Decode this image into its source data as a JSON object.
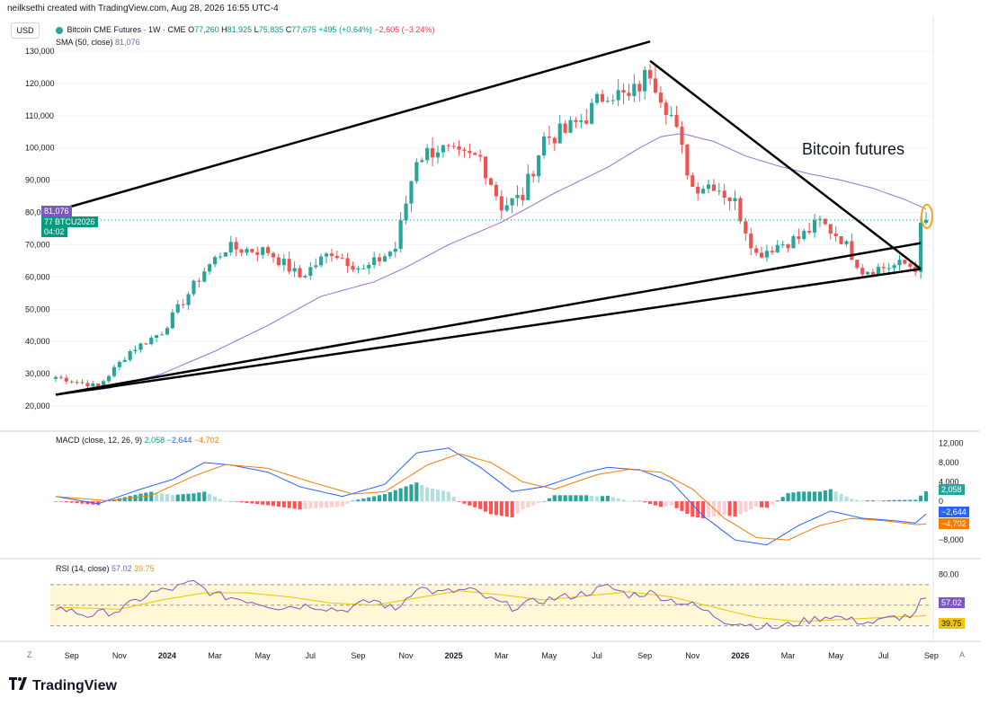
{
  "header": {
    "credit": "neilksethi created with TradingView.com, Aug 28, 2026 16:55 UTC-4",
    "currency": "USD"
  },
  "legend": {
    "symbol": "Bitcoin CME Futures · 1W · CME",
    "o_label": "O",
    "o_value": "77,260",
    "h_label": "H",
    "h_value": "81,925",
    "l_label": "L",
    "l_value": "75,835",
    "c_label": "C",
    "c_value": "77,675",
    "change": "+495 (+0.64%)",
    "change2": "−2,605 (−3.24%)",
    "sma_label": "SMA (50, close)",
    "sma_value": "81,076"
  },
  "annotation": "Bitcoin futures",
  "price_badges": {
    "sma": "81,076",
    "price": "77,675",
    "countdown": "04:02",
    "ticker": "BTCU2026"
  },
  "macd_legend": {
    "label": "MACD (close, 12, 26, 9)",
    "hist": "2,058",
    "macd": "−2,644",
    "signal": "−4,702"
  },
  "rsi_legend": {
    "label": "RSI (14, close)",
    "rsi": "57.02",
    "sma": "39.75"
  },
  "footer": {
    "brand": "TradingView",
    "z": "Z",
    "a": "A"
  },
  "colors": {
    "up": "#26a69a",
    "down": "#ef5350",
    "sma": "#9c6fd6",
    "macd": "#2962ff",
    "signal": "#f57c00",
    "rsi": "#7e57c2",
    "rsi_sma": "#f0c400",
    "trendline": "#000000"
  },
  "chart_data": [
    {
      "type": "candlestick",
      "title": "Bitcoin CME Futures · 1W · CME",
      "ylim": [
        20000,
        130000
      ],
      "yticks": [
        "130,000",
        "120,000",
        "110,000",
        "100,000",
        "90,000",
        "80,000",
        "70,000",
        "60,000",
        "50,000",
        "40,000",
        "30,000",
        "20,000"
      ],
      "ytick_values": [
        130000,
        120000,
        110000,
        100000,
        90000,
        80000,
        70000,
        60000,
        50000,
        40000,
        30000,
        20000
      ],
      "xlabels": [
        "Sep",
        "Nov",
        "2024",
        "Mar",
        "May",
        "Jul",
        "Sep",
        "Nov",
        "2025",
        "Mar",
        "May",
        "Jul",
        "Sep",
        "Nov",
        "2026",
        "Mar",
        "May",
        "Jul",
        "Sep"
      ],
      "xlabel_week": [
        3,
        12,
        21,
        30,
        39,
        48,
        57,
        66,
        75,
        84,
        93,
        102,
        111,
        120,
        129,
        138,
        147,
        156,
        165
      ],
      "bold_labels": [
        "2024",
        "2025",
        "2026"
      ],
      "last_close": 77675,
      "sma_last": 81076,
      "anchors_close": [
        [
          0,
          29000
        ],
        [
          8,
          26000
        ],
        [
          14,
          37000
        ],
        [
          20,
          43000
        ],
        [
          28,
          62000
        ],
        [
          32,
          69000
        ],
        [
          40,
          68000
        ],
        [
          46,
          60000
        ],
        [
          52,
          68000
        ],
        [
          58,
          62000
        ],
        [
          64,
          69000
        ],
        [
          68,
          97000
        ],
        [
          72,
          100000
        ],
        [
          76,
          97000
        ],
        [
          80,
          97000
        ],
        [
          84,
          82000
        ],
        [
          88,
          85000
        ],
        [
          92,
          103000
        ],
        [
          96,
          105000
        ],
        [
          100,
          110000
        ],
        [
          104,
          118000
        ],
        [
          108,
          115000
        ],
        [
          112,
          124000
        ],
        [
          116,
          110000
        ],
        [
          120,
          88000
        ],
        [
          124,
          89000
        ],
        [
          128,
          83000
        ],
        [
          132,
          67000
        ],
        [
          136,
          70000
        ],
        [
          140,
          72000
        ],
        [
          144,
          77000
        ],
        [
          148,
          72000
        ],
        [
          152,
          62000
        ],
        [
          156,
          63000
        ],
        [
          160,
          64000
        ],
        [
          162,
          63000
        ],
        [
          163,
          75000
        ],
        [
          164,
          77675
        ]
      ],
      "sma_points": [
        [
          0,
          23500
        ],
        [
          10,
          25500
        ],
        [
          20,
          30000
        ],
        [
          30,
          37000
        ],
        [
          40,
          45000
        ],
        [
          50,
          54000
        ],
        [
          60,
          58500
        ],
        [
          66,
          63000
        ],
        [
          74,
          70000
        ],
        [
          84,
          77000
        ],
        [
          94,
          86000
        ],
        [
          104,
          94000
        ],
        [
          110,
          100000
        ],
        [
          114,
          103500
        ],
        [
          118,
          104500
        ],
        [
          124,
          102000
        ],
        [
          130,
          97500
        ],
        [
          136,
          94500
        ],
        [
          142,
          92000
        ],
        [
          148,
          90000
        ],
        [
          154,
          87500
        ],
        [
          160,
          84000
        ],
        [
          164,
          81076
        ]
      ],
      "trendlines": [
        {
          "from": [
            0,
            80500
          ],
          "to": [
            112,
            133000
          ]
        },
        {
          "from": [
            0,
            23500
          ],
          "to": [
            163,
            70500
          ]
        },
        {
          "from": [
            0,
            23500
          ],
          "to": [
            163,
            62500
          ]
        },
        {
          "from": [
            112,
            127000
          ],
          "to": [
            163,
            62500
          ]
        }
      ]
    },
    {
      "type": "macd",
      "title": "MACD (close, 12, 26, 9)",
      "yticks": [
        "12,000",
        "8,000",
        "4,000",
        "0",
        "−8,000"
      ],
      "ytick_values": [
        12000,
        8000,
        4000,
        0,
        -8000
      ],
      "ylim": [
        -10000,
        13000
      ],
      "macd_anchors": [
        [
          0,
          1000
        ],
        [
          8,
          -500
        ],
        [
          16,
          2500
        ],
        [
          22,
          4500
        ],
        [
          28,
          8000
        ],
        [
          33,
          7500
        ],
        [
          40,
          6000
        ],
        [
          46,
          3000
        ],
        [
          54,
          1000
        ],
        [
          62,
          3500
        ],
        [
          68,
          10000
        ],
        [
          74,
          11000
        ],
        [
          80,
          7000
        ],
        [
          86,
          2000
        ],
        [
          92,
          3000
        ],
        [
          100,
          6000
        ],
        [
          104,
          7000
        ],
        [
          110,
          6500
        ],
        [
          116,
          4000
        ],
        [
          122,
          -3000
        ],
        [
          128,
          -8000
        ],
        [
          134,
          -9000
        ],
        [
          140,
          -5000
        ],
        [
          146,
          -2000
        ],
        [
          152,
          -3500
        ],
        [
          158,
          -4000
        ],
        [
          162,
          -4500
        ],
        [
          164,
          -2644
        ]
      ],
      "signal_anchors": [
        [
          0,
          1000
        ],
        [
          10,
          100
        ],
        [
          18,
          1200
        ],
        [
          26,
          5200
        ],
        [
          32,
          7600
        ],
        [
          40,
          6800
        ],
        [
          48,
          4000
        ],
        [
          56,
          1500
        ],
        [
          62,
          2000
        ],
        [
          70,
          7500
        ],
        [
          76,
          9800
        ],
        [
          82,
          8000
        ],
        [
          88,
          4000
        ],
        [
          94,
          2500
        ],
        [
          102,
          5500
        ],
        [
          108,
          6600
        ],
        [
          114,
          6000
        ],
        [
          120,
          2500
        ],
        [
          126,
          -3500
        ],
        [
          132,
          -7500
        ],
        [
          138,
          -8000
        ],
        [
          144,
          -5000
        ],
        [
          150,
          -3500
        ],
        [
          156,
          -4000
        ],
        [
          162,
          -4800
        ],
        [
          164,
          -4702
        ]
      ],
      "last_hist": 2058
    },
    {
      "type": "rsi",
      "title": "RSI (14, close)",
      "yticks": [
        "80.00"
      ],
      "ylim": [
        20,
        90
      ],
      "upper": 70,
      "lower": 30,
      "middle": 50,
      "rsi_anchors": [
        [
          0,
          48
        ],
        [
          6,
          40
        ],
        [
          12,
          45
        ],
        [
          18,
          62
        ],
        [
          22,
          66
        ],
        [
          26,
          72
        ],
        [
          30,
          60
        ],
        [
          36,
          55
        ],
        [
          42,
          48
        ],
        [
          48,
          50
        ],
        [
          54,
          45
        ],
        [
          60,
          55
        ],
        [
          64,
          45
        ],
        [
          68,
          68
        ],
        [
          72,
          62
        ],
        [
          78,
          65
        ],
        [
          82,
          55
        ],
        [
          86,
          48
        ],
        [
          92,
          55
        ],
        [
          96,
          58
        ],
        [
          100,
          62
        ],
        [
          104,
          68
        ],
        [
          108,
          60
        ],
        [
          112,
          62
        ],
        [
          116,
          55
        ],
        [
          120,
          50
        ],
        [
          126,
          35
        ],
        [
          132,
          30
        ],
        [
          136,
          28
        ],
        [
          140,
          33
        ],
        [
          146,
          40
        ],
        [
          150,
          35
        ],
        [
          154,
          33
        ],
        [
          158,
          38
        ],
        [
          162,
          40
        ],
        [
          163,
          55
        ],
        [
          164,
          57.02
        ]
      ],
      "sma_anchors": [
        [
          0,
          48
        ],
        [
          12,
          46
        ],
        [
          20,
          55
        ],
        [
          28,
          62
        ],
        [
          36,
          62
        ],
        [
          44,
          58
        ],
        [
          52,
          52
        ],
        [
          60,
          50
        ],
        [
          68,
          57
        ],
        [
          76,
          64
        ],
        [
          84,
          60
        ],
        [
          92,
          55
        ],
        [
          100,
          59
        ],
        [
          108,
          63
        ],
        [
          116,
          58
        ],
        [
          124,
          48
        ],
        [
          132,
          38
        ],
        [
          140,
          34
        ],
        [
          148,
          36
        ],
        [
          156,
          38
        ],
        [
          164,
          39.75
        ]
      ],
      "last_rsi": 57.02,
      "last_sma": 39.75
    }
  ]
}
